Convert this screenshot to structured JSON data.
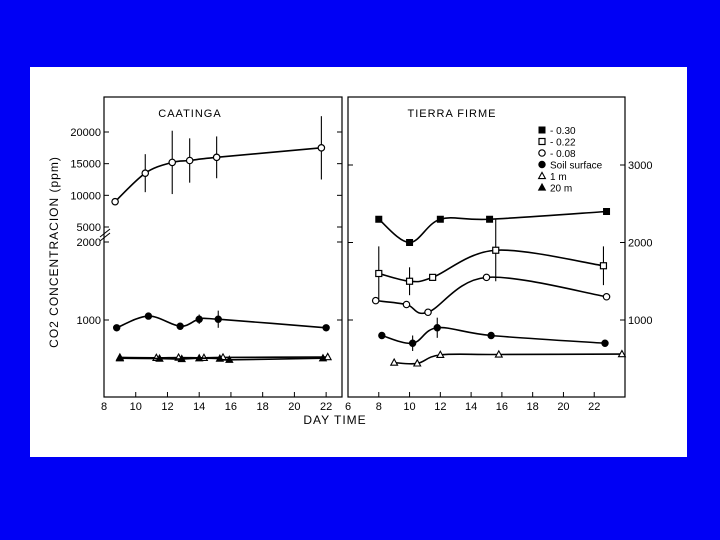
{
  "chart_data": [
    {
      "type": "line",
      "title": "CAATINGA",
      "xlabel": "DAY TIME",
      "ylabel": "CO2 CONCENTRACION (ppm)",
      "xlim": [
        8,
        23
      ],
      "x_ticks": [
        "8",
        "10",
        "12",
        "14",
        "16",
        "18",
        "20",
        "22"
      ],
      "y_ticks": [
        "20000",
        "15000",
        "10000",
        "5000",
        "2000",
        "1000"
      ],
      "series": [
        {
          "name": "- 0.08",
          "marker": "open-circle",
          "x": [
            8.7,
            10.6,
            12.3,
            13.4,
            15.1,
            21.7
          ],
          "y": [
            9000,
            13500,
            15200,
            15500,
            16000,
            17500
          ],
          "err": [
            0,
            3000,
            5000,
            3500,
            3300,
            5000
          ]
        },
        {
          "name": "Soil surface",
          "marker": "filled-circle",
          "x": [
            8.8,
            10.8,
            12.8,
            14.0,
            15.2,
            22.0
          ],
          "y": [
            900,
            1050,
            920,
            1010,
            1010,
            900
          ],
          "err": [
            0,
            0,
            0,
            60,
            110,
            0
          ]
        },
        {
          "name": "1 m",
          "marker": "open-triangle",
          "x": [
            9.0,
            11.3,
            12.7,
            14.3,
            15.5,
            22.1
          ],
          "y": [
            520,
            515,
            518,
            515,
            520,
            525
          ]
        },
        {
          "name": "20 m",
          "marker": "filled-triangle",
          "x": [
            9.0,
            11.5,
            12.9,
            14.0,
            15.3,
            15.9,
            21.8
          ],
          "y": [
            510,
            505,
            500,
            510,
            505,
            490,
            510
          ]
        }
      ]
    },
    {
      "type": "line",
      "title": "TIERRA FIRME",
      "xlabel": "DAY TIME",
      "xlim": [
        6,
        24
      ],
      "x_ticks": [
        "6",
        "8",
        "10",
        "12",
        "14",
        "16",
        "18",
        "20",
        "22"
      ],
      "y_ticks": [
        "3000",
        "2000",
        "1000"
      ],
      "series": [
        {
          "name": "- 0.30",
          "marker": "filled-square",
          "x": [
            8.0,
            10.0,
            12.0,
            15.2,
            22.8
          ],
          "y": [
            2300,
            2000,
            2300,
            2300,
            2400
          ],
          "err": [
            0,
            0,
            0,
            0,
            0
          ]
        },
        {
          "name": "- 0.22",
          "marker": "open-square",
          "x": [
            8.0,
            10.0,
            11.5,
            15.6,
            22.6
          ],
          "y": [
            1600,
            1500,
            1550,
            1900,
            1700
          ],
          "err": [
            350,
            180,
            0,
            400,
            250
          ]
        },
        {
          "name": "- 0.08",
          "marker": "open-circle",
          "x": [
            7.8,
            9.8,
            11.2,
            15.0,
            22.8
          ],
          "y": [
            1250,
            1200,
            1100,
            1550,
            1300
          ],
          "err": [
            0,
            0,
            0,
            0,
            0
          ]
        },
        {
          "name": "Soil surface",
          "marker": "filled-circle",
          "x": [
            8.2,
            10.2,
            11.8,
            15.3,
            22.7
          ],
          "y": [
            800,
            700,
            900,
            800,
            700
          ],
          "err": [
            0,
            100,
            130,
            0,
            0
          ]
        },
        {
          "name": "1 m",
          "marker": "open-triangle",
          "x": [
            9.0,
            10.5,
            12.0,
            15.8,
            23.8
          ],
          "y": [
            450,
            440,
            550,
            555,
            560
          ]
        },
        {
          "name": "20 m",
          "marker": "filled-triangle",
          "x": [],
          "y": []
        }
      ]
    }
  ],
  "legend_entries": [
    "- 0.30",
    "- 0.22",
    "- 0.08",
    "Soil surface",
    "1 m",
    "20 m"
  ]
}
